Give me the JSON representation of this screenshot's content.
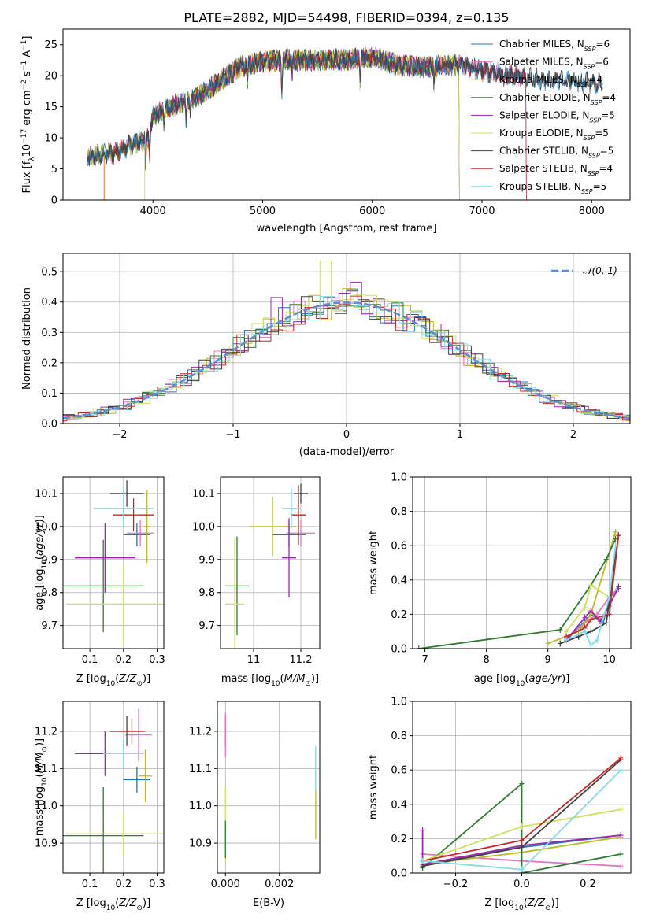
{
  "chart_data": [
    {
      "type": "line",
      "title": "PLATE=2882, MJD=54498, FIBERID=0394, z=0.135",
      "xlabel": "wavelength [Angstrom, rest frame]",
      "ylabel": "Flux [f$_\\lambda$10$^{-17}$ erg cm$^{-2}$ s$^{-1}$ A$^{-1}$]",
      "ylabel_parts": [
        "Flux [f",
        "λ",
        "10",
        "−17",
        " erg cm",
        "−2",
        " s",
        "−1",
        " A",
        "−1",
        "]"
      ],
      "xlim": [
        3180,
        8350
      ],
      "ylim": [
        0,
        27.5
      ],
      "xticks": [
        4000,
        5000,
        6000,
        7000,
        8000
      ],
      "yticks": [
        0,
        5,
        10,
        15,
        20,
        25
      ],
      "legend_position": "right",
      "series": [
        {
          "name": "Chabrier MILES, N$_{SSP}$=6",
          "label_main": "Chabrier MILES, N",
          "label_sub": "SSP",
          "label_tail": "=6",
          "color": "#1f77b4",
          "x_range": [
            3400,
            8100
          ]
        },
        {
          "name": "Salpeter MILES, N$_{SSP}$=6",
          "label_main": "Salpeter MILES, N",
          "label_sub": "SSP",
          "label_tail": "=6",
          "color": "#e377c2",
          "x_range": [
            3400,
            7400
          ]
        },
        {
          "name": "Kroupa MILES, N$_{SSP}$=4",
          "label_main": "Kroupa MILES, N",
          "label_sub": "SSP",
          "label_tail": "=4",
          "color": "#bcbd22",
          "x_range": [
            3400,
            6790
          ]
        },
        {
          "name": "Chabrier ELODIE, N$_{SSP}$=4",
          "label_main": "Chabrier ELODIE, N",
          "label_sub": "SSP",
          "label_tail": "=4",
          "color": "#2e7d32",
          "x_range": [
            3900,
            6790
          ]
        },
        {
          "name": "Salpeter ELODIE, N$_{SSP}$=5",
          "label_main": "Salpeter ELODIE, N",
          "label_sub": "SSP",
          "label_tail": "=5",
          "color": "#9c27b0",
          "x_range": [
            3900,
            6790
          ]
        },
        {
          "name": "Kroupa ELODIE, N$_{SSP}$=5",
          "label_main": "Kroupa ELODIE, N",
          "label_sub": "SSP",
          "label_tail": "=5",
          "color": "#d4e157",
          "x_range": [
            3900,
            6790
          ]
        },
        {
          "name": "Chabrier STELIB, N$_{SSP}$=5",
          "label_main": "Chabrier STELIB, N",
          "label_sub": "SSP",
          "label_tail": "=5",
          "color": "#424242",
          "x_range": [
            3400,
            8100
          ]
        },
        {
          "name": "Salpeter STELIB, N$_{SSP}$=4",
          "label_main": "Salpeter STELIB, N",
          "label_sub": "SSP",
          "label_tail": "=4",
          "color": "#c62828",
          "x_range": [
            3550,
            7400
          ]
        },
        {
          "name": "Kroupa STELIB, N$_{SSP}$=5",
          "label_main": "Kroupa STELIB, N",
          "label_sub": "SSP",
          "label_tail": "=5",
          "color": "#80deea",
          "x_range": [
            3400,
            7400
          ]
        }
      ],
      "continuum": [
        [
          3380,
          7
        ],
        [
          3500,
          7.2
        ],
        [
          3650,
          7.5
        ],
        [
          3800,
          9
        ],
        [
          3900,
          9.5
        ],
        [
          3960,
          10
        ],
        [
          4000,
          13.5
        ],
        [
          4200,
          15.2
        ],
        [
          4400,
          16.5
        ],
        [
          4600,
          19
        ],
        [
          4800,
          21.5
        ],
        [
          5000,
          22.3
        ],
        [
          5200,
          22.5
        ],
        [
          5500,
          22.5
        ],
        [
          5800,
          22.6
        ],
        [
          6000,
          23
        ],
        [
          6300,
          21.5
        ],
        [
          6600,
          21.5
        ],
        [
          6800,
          21.8
        ],
        [
          7000,
          20.8
        ],
        [
          7300,
          20
        ],
        [
          7600,
          19.2
        ],
        [
          7900,
          19
        ],
        [
          8100,
          18.8
        ]
      ]
    },
    {
      "type": "histogram",
      "xlabel": "(data-model)/error",
      "ylabel": "Normed distribution",
      "xlim": [
        -2.5,
        2.5
      ],
      "ylim": [
        0,
        0.56
      ],
      "xticks": [
        -2,
        -1,
        0,
        1,
        2
      ],
      "yticks": [
        0.0,
        0.1,
        0.2,
        0.3,
        0.4,
        0.5
      ],
      "bin_width": 0.1,
      "reference": {
        "name": "$\\mathcal{N}(0,1)$",
        "label": "𝒩(0, 1)",
        "color": "#5b8fdb",
        "mean": 0,
        "sigma": 1
      },
      "peak_bins": [
        {
          "series": "Kroupa ELODIE",
          "x": -0.2,
          "y": 0.535
        },
        {
          "series": "Salpeter ELODIE",
          "x": 0.1,
          "y": 0.465
        },
        {
          "series": "Salpeter ELODIE",
          "x": -0.65,
          "y": 0.415
        }
      ]
    },
    {
      "type": "scatter",
      "name": "age-vs-Z",
      "xlabel": "Z [log$_{10}$($Z/Z_\\odot$)]",
      "ylabel": "age  [log$_{10}$($age/yr$)]",
      "xlim": [
        0.02,
        0.32
      ],
      "ylim": [
        9.63,
        10.15
      ],
      "xticks": [
        0.1,
        0.2,
        0.3
      ],
      "yticks": [
        9.7,
        9.8,
        9.9,
        10.0,
        10.1
      ],
      "points": [
        {
          "series": "Chabrier MILES",
          "x": 0.24,
          "xerr": 0.04,
          "y": 9.975,
          "yerr": 0.035
        },
        {
          "series": "Salpeter MILES",
          "x": 0.25,
          "xerr": 0.04,
          "y": 9.98,
          "yerr": 0.04
        },
        {
          "series": "Kroupa MILES",
          "x": 0.27,
          "xerr": 0.01,
          "y": 10.0,
          "yerr": 0.11
        },
        {
          "series": "Chabrier ELODIE",
          "x": 0.14,
          "xerr": 0.12,
          "y": 9.82,
          "yerr": 0.14
        },
        {
          "series": "Salpeter ELODIE",
          "x": 0.145,
          "xerr": 0.09,
          "y": 9.905,
          "yerr": 0.105
        },
        {
          "series": "Kroupa ELODIE",
          "x": 0.2,
          "xerr": 0.17,
          "y": 9.765,
          "yerr": 0.12
        },
        {
          "series": "Chabrier STELIB",
          "x": 0.21,
          "xerr": 0.05,
          "y": 10.1,
          "yerr": 0.04
        },
        {
          "series": "Salpeter STELIB",
          "x": 0.23,
          "xerr": 0.06,
          "y": 10.035,
          "yerr": 0.05
        },
        {
          "series": "Kroupa STELIB",
          "x": 0.2,
          "xerr": 0.09,
          "y": 10.055,
          "yerr": 0.06
        }
      ]
    },
    {
      "type": "scatter",
      "name": "age-vs-mass",
      "xlabel": "mass [log$_{10}$($M/M_\\odot$)]",
      "ylabel": "",
      "xlim": [
        10.86,
        11.28
      ],
      "ylim": [
        9.63,
        10.15
      ],
      "xticks": [
        11.0,
        11.2
      ],
      "yticks": [
        9.7,
        9.8,
        9.9,
        10.0,
        10.1
      ],
      "points": [
        {
          "series": "Chabrier MILES",
          "x": 11.15,
          "xerr": 0.07,
          "y": 9.975,
          "yerr": 0.035
        },
        {
          "series": "Salpeter MILES",
          "x": 11.2,
          "xerr": 0.06,
          "y": 9.98,
          "yerr": 0.04
        },
        {
          "series": "Kroupa MILES",
          "x": 11.08,
          "xerr": 0.1,
          "y": 10.0,
          "yerr": 0.09
        },
        {
          "series": "Chabrier ELODIE",
          "x": 10.93,
          "xerr": 0.05,
          "y": 9.82,
          "yerr": 0.15
        },
        {
          "series": "Salpeter ELODIE",
          "x": 11.15,
          "xerr": 0.03,
          "y": 9.905,
          "yerr": 0.12
        },
        {
          "series": "Kroupa ELODIE",
          "x": 10.92,
          "xerr": 0.04,
          "y": 9.765,
          "yerr": 0.2
        },
        {
          "series": "Chabrier STELIB",
          "x": 11.2,
          "xerr": 0.03,
          "y": 10.1,
          "yerr": 0.03
        },
        {
          "series": "Salpeter STELIB",
          "x": 11.19,
          "xerr": 0.03,
          "y": 10.035,
          "yerr": 0.09
        },
        {
          "series": "Kroupa STELIB",
          "x": 11.16,
          "xerr": 0.04,
          "y": 10.055,
          "yerr": 0.06
        }
      ]
    },
    {
      "type": "line",
      "name": "mass-weight-vs-age",
      "xlabel": "age  [log$_{10}$($age/yr$)]",
      "ylabel": "mass weight",
      "xlim": [
        6.8,
        10.35
      ],
      "ylim": [
        0,
        1.0
      ],
      "xticks": [
        7,
        8,
        9,
        10
      ],
      "yticks": [
        0.0,
        0.2,
        0.4,
        0.6,
        0.8,
        1.0
      ],
      "series": [
        {
          "name": "Chabrier MILES",
          "x": [
            9.3,
            9.5,
            9.7,
            9.9,
            10.0,
            10.15
          ],
          "y": [
            0.05,
            0.12,
            0.2,
            0.15,
            0.3,
            0.35
          ]
        },
        {
          "name": "Salpeter MILES",
          "x": [
            9.3,
            9.6,
            9.8,
            10.0,
            10.1
          ],
          "y": [
            0.06,
            0.15,
            0.2,
            0.3,
            0.33
          ]
        },
        {
          "name": "Kroupa MILES",
          "x": [
            9.0,
            9.5,
            9.7,
            10.1
          ],
          "y": [
            0.03,
            0.1,
            0.2,
            0.68
          ]
        },
        {
          "name": "Chabrier ELODIE",
          "x": [
            6.9,
            9.2,
            9.7,
            9.95,
            10.1
          ],
          "y": [
            0.0,
            0.11,
            0.37,
            0.52,
            0.64
          ]
        },
        {
          "name": "Salpeter ELODIE",
          "x": [
            9.3,
            9.6,
            9.7,
            9.85,
            10.0,
            10.15
          ],
          "y": [
            0.05,
            0.18,
            0.22,
            0.16,
            0.25,
            0.36
          ]
        },
        {
          "name": "Kroupa ELODIE",
          "x": [
            9.3,
            9.6,
            9.7,
            10.0
          ],
          "y": [
            0.1,
            0.24,
            0.37,
            0.3
          ]
        },
        {
          "name": "Chabrier STELIB",
          "x": [
            9.2,
            9.5,
            9.7,
            9.95,
            10.15
          ],
          "y": [
            0.03,
            0.07,
            0.1,
            0.15,
            0.66
          ]
        },
        {
          "name": "Salpeter STELIB",
          "x": [
            9.3,
            9.6,
            9.7,
            10.0,
            10.15
          ],
          "y": [
            0.07,
            0.12,
            0.17,
            0.2,
            0.66
          ]
        },
        {
          "name": "Kroupa STELIB",
          "x": [
            9.3,
            9.6,
            9.7,
            9.8,
            10.0,
            10.1
          ],
          "y": [
            0.05,
            0.1,
            0.02,
            0.05,
            0.3,
            0.6
          ]
        }
      ]
    },
    {
      "type": "scatter",
      "name": "mass-vs-Z",
      "xlabel": "Z [log$_{10}$($Z/Z_\\odot$)]",
      "ylabel": "mass [log$_{10}$($M/M_\\odot$)]",
      "xlim": [
        0.02,
        0.32
      ],
      "ylim": [
        10.82,
        11.28
      ],
      "xticks": [
        0.1,
        0.2,
        0.3
      ],
      "yticks": [
        10.9,
        11.0,
        11.1,
        11.2
      ],
      "points": [
        {
          "series": "Chabrier MILES",
          "x": 0.24,
          "xerr": 0.04,
          "y": 11.07,
          "yerr": 0.035
        },
        {
          "series": "Salpeter MILES",
          "x": 0.245,
          "xerr": 0.04,
          "y": 11.19,
          "yerr": 0.07
        },
        {
          "series": "Kroupa MILES",
          "x": 0.265,
          "xerr": 0.02,
          "y": 11.08,
          "yerr": 0.07
        },
        {
          "series": "Chabrier ELODIE",
          "x": 0.14,
          "xerr": 0.12,
          "y": 10.92,
          "yerr": 0.13
        },
        {
          "series": "Salpeter ELODIE",
          "x": 0.145,
          "xerr": 0.09,
          "y": 11.14,
          "yerr": 0.06
        },
        {
          "series": "Kroupa ELODIE",
          "x": 0.2,
          "xerr": 0.17,
          "y": 10.925,
          "yerr": 0.06
        },
        {
          "series": "Chabrier STELIB",
          "x": 0.21,
          "xerr": 0.05,
          "y": 11.2,
          "yerr": 0.04
        },
        {
          "series": "Salpeter STELIB",
          "x": 0.225,
          "xerr": 0.04,
          "y": 11.2,
          "yerr": 0.035
        },
        {
          "series": "Kroupa STELIB",
          "x": 0.2,
          "xerr": 0.06,
          "y": 11.14,
          "yerr": 0.04
        }
      ]
    },
    {
      "type": "scatter",
      "name": "mass-vs-ebv",
      "xlabel": "E(B-V)",
      "ylabel": "",
      "xlim": [
        -0.0003,
        0.0035
      ],
      "ylim": [
        10.82,
        11.28
      ],
      "xticks": [
        0.0,
        0.002
      ],
      "xtick_labels": [
        "0.000",
        "0.002"
      ],
      "yticks": [
        10.9,
        11.0,
        11.1,
        11.2
      ],
      "points": [
        {
          "series": "Kroupa MILES",
          "x": 0.00335,
          "y": 11.03,
          "yerr": 0.12
        },
        {
          "series": "Kroupa STELIB",
          "x": 0.00335,
          "y": 11.1,
          "yerr": 0.06
        },
        {
          "series": "Salpeter STELIB",
          "x": 0.0,
          "y": 11.2,
          "yerr": 0.04
        },
        {
          "series": "Salpeter MILES",
          "x": 0.0,
          "y": 11.19,
          "yerr": 0.06
        },
        {
          "series": "Kroupa ELODIE",
          "x": 0.0,
          "y": 10.95,
          "yerr": 0.1
        },
        {
          "series": "Chabrier ELODIE",
          "x": 0.0,
          "y": 10.91,
          "yerr": 0.05
        }
      ]
    },
    {
      "type": "line",
      "name": "mass-weight-vs-Z",
      "xlabel": "Z [log$_{10}$($Z/Z_\\odot$)]",
      "ylabel": "mass weight",
      "xlim": [
        -0.33,
        0.33
      ],
      "ylim": [
        0,
        1.0
      ],
      "xticks": [
        -0.2,
        0.0,
        0.2
      ],
      "xtick_labels": [
        "−0.2",
        "0.0",
        "0.2"
      ],
      "yticks": [
        0.0,
        0.2,
        0.4,
        0.6,
        0.8,
        1.0
      ],
      "series": [
        {
          "name": "Chabrier MILES",
          "x": [
            -0.3,
            0.0,
            0.3
          ],
          "y": [
            0.05,
            0.15,
            0.22
          ]
        },
        {
          "name": "Salpeter MILES",
          "x": [
            -0.3,
            0.0,
            0.3
          ],
          "y": [
            0.11,
            0.07,
            0.04
          ]
        },
        {
          "name": "Kroupa MILES",
          "x": [
            -0.3,
            0.0,
            0.3
          ],
          "y": [
            0.05,
            0.12,
            0.21
          ]
        },
        {
          "name": "Chabrier ELODIE",
          "x": [
            -0.3,
            0.0,
            0.0,
            0.3
          ],
          "y": [
            0.03,
            0.52,
            0.0,
            0.11
          ]
        },
        {
          "name": "Salpeter ELODIE",
          "x": [
            -0.3,
            -0.3,
            0.0,
            0.3
          ],
          "y": [
            0.25,
            0.05,
            0.16,
            0.22
          ]
        },
        {
          "name": "Kroupa ELODIE",
          "x": [
            -0.3,
            0.0,
            0.3
          ],
          "y": [
            0.07,
            0.27,
            0.37
          ]
        },
        {
          "name": "Chabrier STELIB",
          "x": [
            -0.3,
            0.0,
            0.3
          ],
          "y": [
            0.04,
            0.15,
            0.66
          ]
        },
        {
          "name": "Salpeter STELIB",
          "x": [
            -0.3,
            0.0,
            0.3
          ],
          "y": [
            0.07,
            0.19,
            0.67
          ]
        },
        {
          "name": "Kroupa STELIB",
          "x": [
            -0.3,
            0.0,
            0.3
          ],
          "y": [
            0.07,
            0.02,
            0.6
          ]
        }
      ]
    }
  ]
}
